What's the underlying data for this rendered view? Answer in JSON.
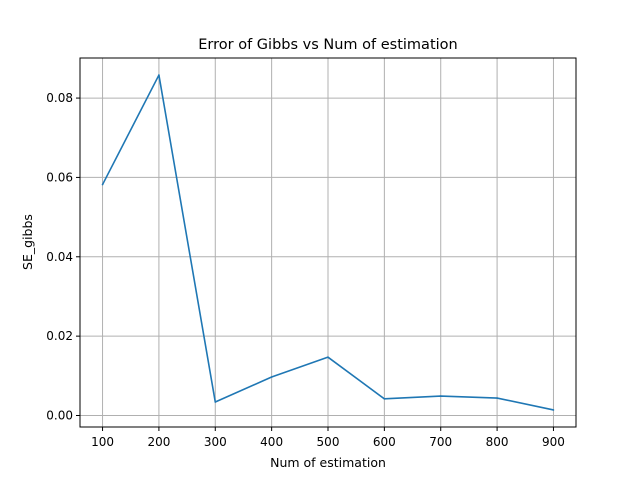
{
  "chart_data": {
    "type": "line",
    "title": "Error of Gibbs vs Num of estimation",
    "xlabel": "Num of estimation",
    "ylabel": "SE_gibbs",
    "x": [
      100,
      200,
      300,
      400,
      500,
      600,
      700,
      800,
      900
    ],
    "series": [
      {
        "values": [
          0.0582,
          0.0858,
          0.0034,
          0.0097,
          0.0147,
          0.0042,
          0.0049,
          0.0044,
          0.0014
        ],
        "color": "#1f77b4"
      }
    ],
    "xticks": [
      100,
      200,
      300,
      400,
      500,
      600,
      700,
      800,
      900
    ],
    "xtick_labels": [
      "100",
      "200",
      "300",
      "400",
      "500",
      "600",
      "700",
      "800",
      "900"
    ],
    "yticks": [
      0.0,
      0.02,
      0.04,
      0.06,
      0.08
    ],
    "ytick_labels": [
      "0.00",
      "0.02",
      "0.04",
      "0.06",
      "0.08"
    ],
    "xlim": [
      60,
      940
    ],
    "ylim": [
      -0.0029,
      0.0901
    ],
    "grid": true,
    "legend": false
  }
}
